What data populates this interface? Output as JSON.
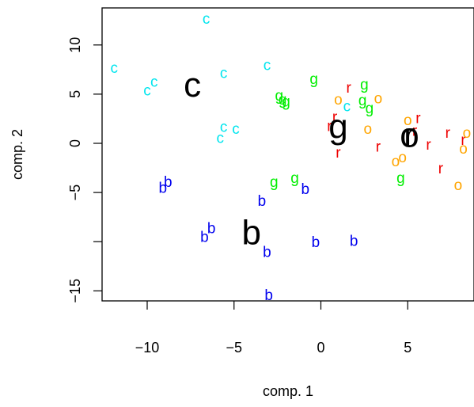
{
  "chart_data": {
    "type": "scatter",
    "title": "",
    "xlabel": "comp. 1",
    "ylabel": "comp. 2",
    "xlim": [
      -12.8,
      8.8
    ],
    "ylim": [
      -16.2,
      13.7
    ],
    "x_ticks": [
      -10,
      -5,
      0,
      5
    ],
    "x_tick_labels": [
      "−10",
      "−5",
      "0",
      "5"
    ],
    "y_ticks": [
      -15,
      -10,
      -5,
      0,
      5,
      10
    ],
    "y_tick_labels": [
      "−15",
      "",
      "−5",
      "0",
      "5",
      "10"
    ],
    "series": [
      {
        "label": "c",
        "color": "#00e5ee",
        "points": [
          {
            "x": -6.6,
            "y": 12.6
          },
          {
            "x": -11.9,
            "y": 7.6
          },
          {
            "x": -10.0,
            "y": 5.3
          },
          {
            "x": -9.6,
            "y": 6.2
          },
          {
            "x": -5.6,
            "y": 7.1
          },
          {
            "x": -3.1,
            "y": 7.9
          },
          {
            "x": -5.6,
            "y": 1.6
          },
          {
            "x": -5.8,
            "y": 0.5
          },
          {
            "x": -4.9,
            "y": 1.4
          },
          {
            "x": 1.5,
            "y": 3.7
          }
        ],
        "centroid": {
          "x": -7.4,
          "y": 5.9
        }
      },
      {
        "label": "b",
        "color": "#0000ee",
        "points": [
          {
            "x": -8.8,
            "y": -4.0
          },
          {
            "x": -9.1,
            "y": -4.6
          },
          {
            "x": -6.3,
            "y": -8.7
          },
          {
            "x": -6.7,
            "y": -9.6
          },
          {
            "x": -3.4,
            "y": -5.9
          },
          {
            "x": -3.1,
            "y": -11.1
          },
          {
            "x": -0.9,
            "y": -4.7
          },
          {
            "x": -0.3,
            "y": -10.1
          },
          {
            "x": 1.9,
            "y": -10.0
          },
          {
            "x": -3.0,
            "y": -15.5
          }
        ],
        "centroid": {
          "x": -4.0,
          "y": -9.1
        }
      },
      {
        "label": "g",
        "color": "#00ee00",
        "points": [
          {
            "x": -0.4,
            "y": 6.5
          },
          {
            "x": -2.4,
            "y": 4.8
          },
          {
            "x": -2.2,
            "y": 4.4
          },
          {
            "x": -2.0,
            "y": 4.2
          },
          {
            "x": 2.5,
            "y": 5.9
          },
          {
            "x": 2.4,
            "y": 4.3
          },
          {
            "x": 2.8,
            "y": 3.5
          },
          {
            "x": -2.7,
            "y": -4.0
          },
          {
            "x": -1.5,
            "y": -3.6
          },
          {
            "x": 4.6,
            "y": -3.6
          }
        ],
        "centroid": {
          "x": 1.0,
          "y": 1.7
        }
      },
      {
        "label": "r",
        "color": "#ee0000",
        "points": [
          {
            "x": 1.6,
            "y": 5.6
          },
          {
            "x": 0.8,
            "y": 2.6
          },
          {
            "x": 0.5,
            "y": 1.7
          },
          {
            "x": 1.0,
            "y": -1.0
          },
          {
            "x": 3.3,
            "y": -0.4
          },
          {
            "x": 5.6,
            "y": 2.5
          },
          {
            "x": 5.4,
            "y": 1.2
          },
          {
            "x": 7.3,
            "y": 1.0
          },
          {
            "x": 6.2,
            "y": -0.2
          },
          {
            "x": 6.9,
            "y": -2.6
          },
          {
            "x": 8.2,
            "y": 0.3
          }
        ],
        "centroid": {
          "x": 5.1,
          "y": 0.8
        }
      },
      {
        "label": "o",
        "color": "#ffa500",
        "points": [
          {
            "x": 1.0,
            "y": 4.4
          },
          {
            "x": 3.3,
            "y": 4.5
          },
          {
            "x": 2.7,
            "y": 1.4
          },
          {
            "x": 5.0,
            "y": 2.3
          },
          {
            "x": 4.7,
            "y": -1.5
          },
          {
            "x": 4.3,
            "y": -1.9
          },
          {
            "x": 8.4,
            "y": 1.0
          },
          {
            "x": 8.2,
            "y": -0.6
          },
          {
            "x": 7.9,
            "y": -4.3
          }
        ],
        "centroid": {
          "x": 5.1,
          "y": 0.8
        }
      }
    ]
  }
}
